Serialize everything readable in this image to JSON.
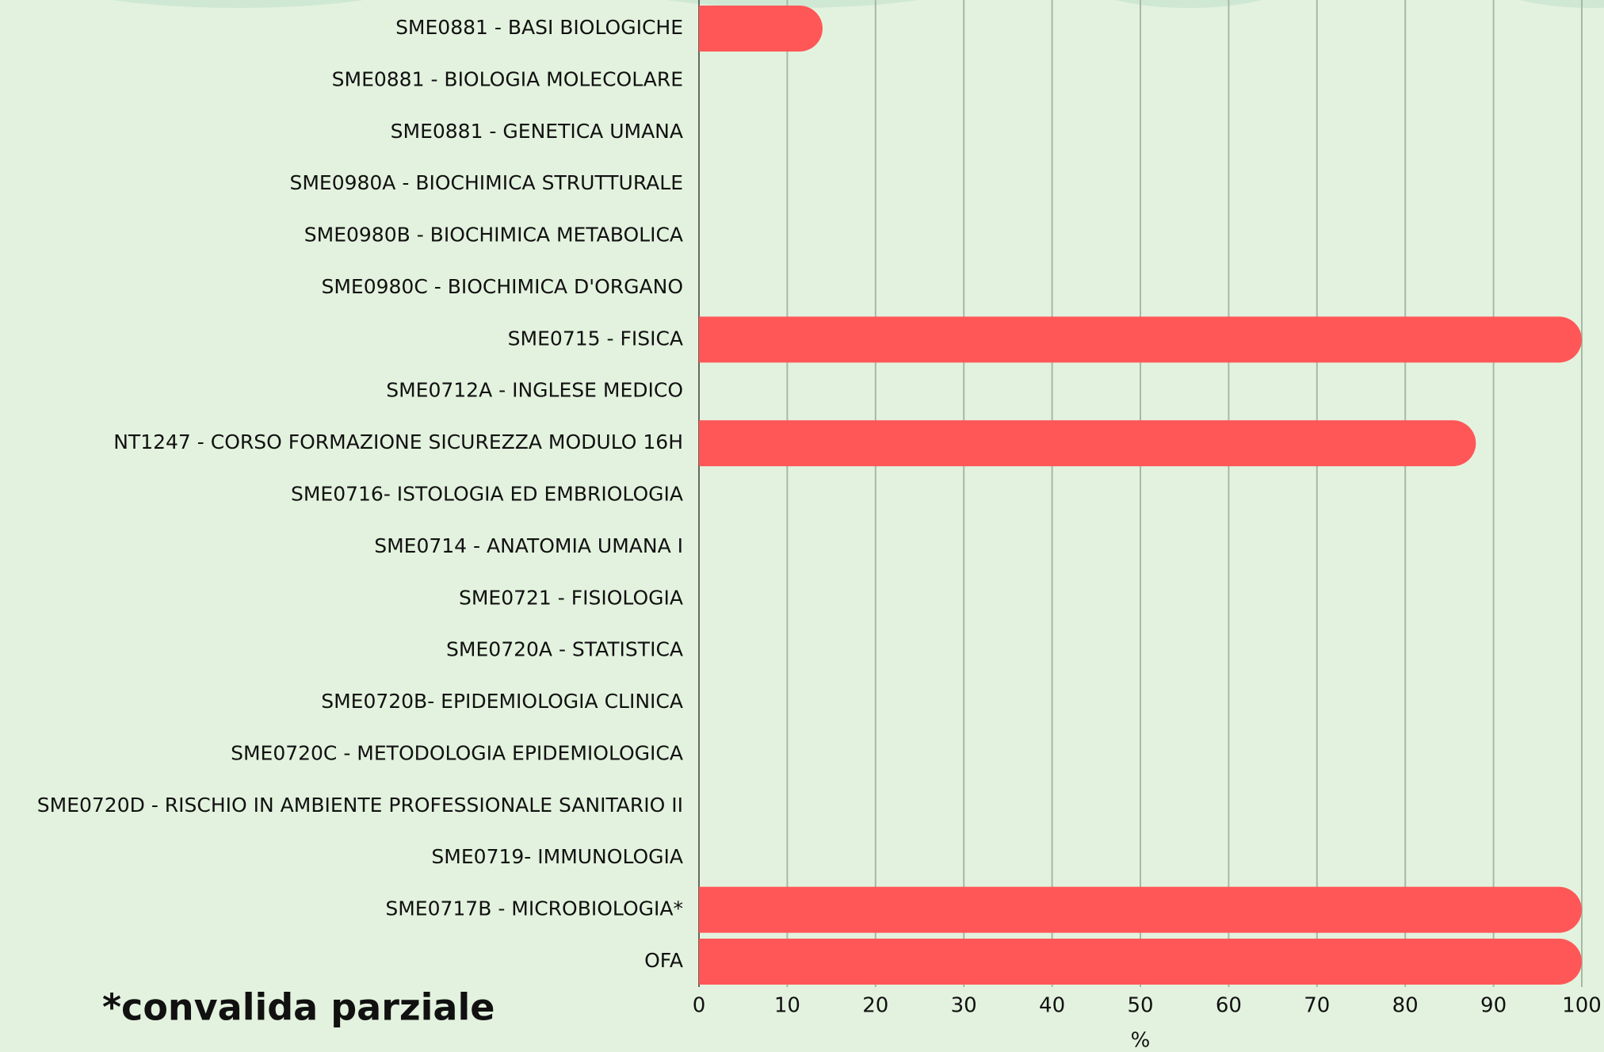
{
  "chart_data": {
    "type": "bar",
    "orientation": "horizontal",
    "categories": [
      "SME0881 - BASI BIOLOGICHE",
      "SME0881 - BIOLOGIA MOLECOLARE",
      "SME0881 - GENETICA UMANA",
      "SME0980A - BIOCHIMICA STRUTTURALE",
      "SME0980B - BIOCHIMICA METABOLICA",
      "SME0980C - BIOCHIMICA D'ORGANO",
      "SME0715 - FISICA",
      "SME0712A - INGLESE MEDICO",
      "NT1247 - CORSO FORMAZIONE SICUREZZA MODULO 16H",
      "SME0716- ISTOLOGIA ED EMBRIOLOGIA",
      "SME0714 - ANATOMIA UMANA I",
      "SME0721 - FISIOLOGIA",
      "SME0720A - STATISTICA",
      "SME0720B- EPIDEMIOLOGIA CLINICA",
      "SME0720C - METODOLOGIA EPIDEMIOLOGICA",
      "SME0720D - RISCHIO IN AMBIENTE PROFESSIONALE SANITARIO II",
      "SME0719- IMMUNOLOGIA",
      "SME0717B - MICROBIOLOGIA*",
      "OFA"
    ],
    "values": [
      14,
      0,
      0,
      0,
      0,
      0,
      100,
      0,
      88,
      0,
      0,
      0,
      0,
      0,
      0,
      0,
      0,
      100,
      100
    ],
    "color": "#ff5757",
    "xlim": [
      0,
      100
    ],
    "xticks": [
      0,
      10,
      20,
      30,
      40,
      50,
      60,
      70,
      80,
      90,
      100
    ],
    "xlabel": "%",
    "grid": true,
    "annotation": "*convalida parziale"
  }
}
